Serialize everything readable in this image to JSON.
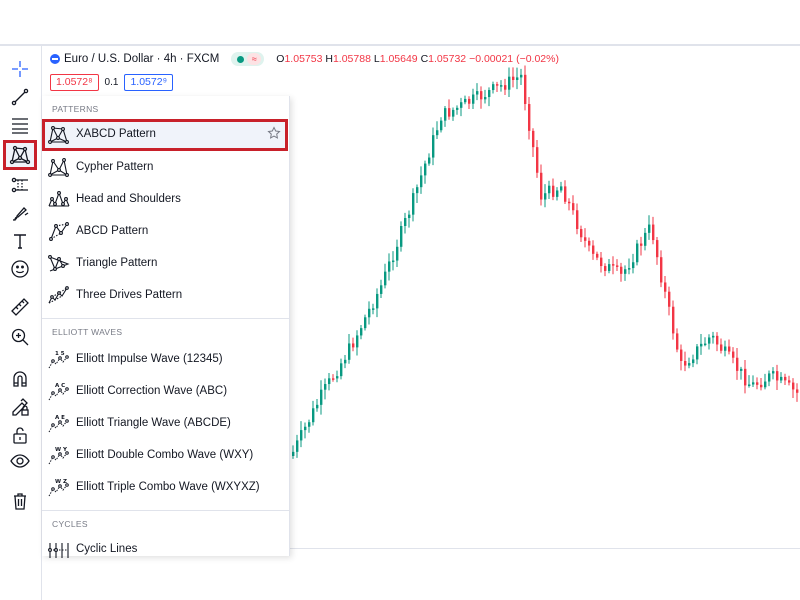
{
  "symbol": {
    "title": "Euro / U.S. Dollar · 4h · FXCM",
    "ohlc": {
      "o_label": "O",
      "o_value": "1.05753",
      "h_label": "H",
      "h_value": "1.05788",
      "l_label": "L",
      "l_value": "1.05649",
      "c_label": "C",
      "c_value": "1.05732",
      "change": "−0.00021 (−0.02%)"
    },
    "wave_glyph": "≈"
  },
  "prices": {
    "sell": "1.0572⁸",
    "spread": "0.1",
    "buy": "1.0572⁹"
  },
  "toolbar": [
    {
      "icon": "crosshair-icon"
    },
    {
      "icon": "trend-line-icon"
    },
    {
      "icon": "fib-retracement-icon"
    },
    {
      "icon": "patterns-icon",
      "active": true
    },
    {
      "icon": "prediction-measurement-icon"
    },
    {
      "icon": "brush-icon"
    },
    {
      "icon": "text-icon"
    },
    {
      "icon": "emoji-icon"
    },
    {
      "icon": "ruler-icon"
    },
    {
      "icon": "zoom-in-icon"
    },
    {
      "icon": "magnet-icon"
    },
    {
      "icon": "lock-drawing-icon"
    },
    {
      "icon": "lock-icon"
    },
    {
      "icon": "eye-icon"
    },
    {
      "icon": "trash-icon"
    }
  ],
  "menu": {
    "patterns_header": "PATTERNS",
    "patterns": [
      {
        "label": "XABCD Pattern",
        "icon": "xabcd-icon",
        "selected": true
      },
      {
        "label": "Cypher Pattern",
        "icon": "cypher-icon"
      },
      {
        "label": "Head and Shoulders",
        "icon": "head-shoulders-icon"
      },
      {
        "label": "ABCD Pattern",
        "icon": "abcd-icon"
      },
      {
        "label": "Triangle Pattern",
        "icon": "triangle-icon"
      },
      {
        "label": "Three Drives Pattern",
        "icon": "three-drives-icon"
      }
    ],
    "elliott_header": "ELLIOTT WAVES",
    "elliott": [
      {
        "label": "Elliott Impulse Wave (12345)",
        "icon": "impulse-wave-icon",
        "glyph": "1 5"
      },
      {
        "label": "Elliott Correction Wave (ABC)",
        "icon": "correction-wave-icon",
        "glyph": "A C"
      },
      {
        "label": "Elliott Triangle Wave (ABCDE)",
        "icon": "triangle-wave-icon",
        "glyph": "A E"
      },
      {
        "label": "Elliott Double Combo Wave (WXY)",
        "icon": "double-combo-icon",
        "glyph": "W Y"
      },
      {
        "label": "Elliott Triple Combo Wave (WXYXZ)",
        "icon": "triple-combo-icon",
        "glyph": "W Z"
      }
    ],
    "cycles_header": "CYCLES",
    "cycles": [
      {
        "label": "Cyclic Lines",
        "icon": "cyclic-lines-icon"
      }
    ]
  },
  "colors": {
    "up": "#089981",
    "down": "#f23645",
    "highlight": "#c8202a",
    "accent": "#2962ff"
  }
}
